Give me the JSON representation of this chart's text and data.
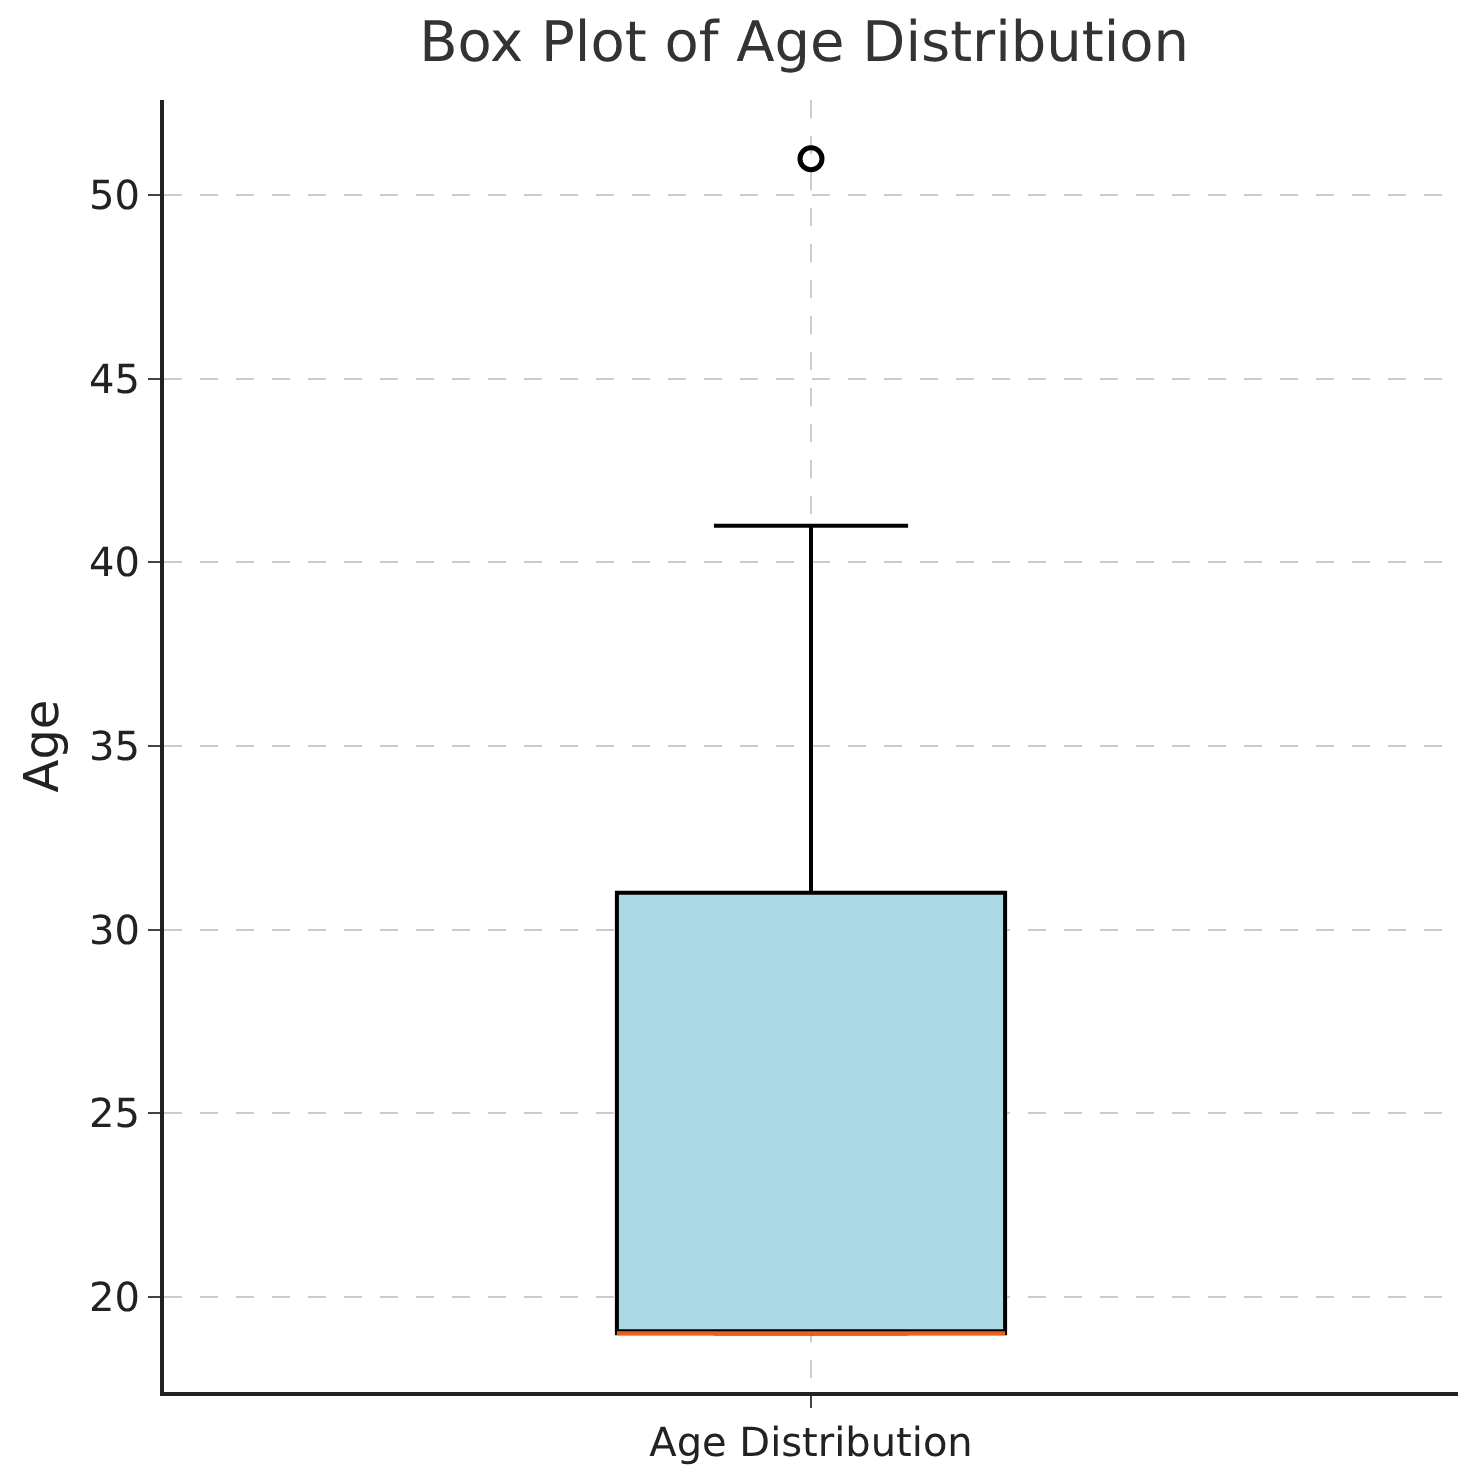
{
  "chart_data": {
    "type": "box",
    "title": "Box Plot of Age Distribution",
    "ylabel": "Age",
    "categories": [
      "Age Distribution"
    ],
    "boxes": [
      {
        "low": 19,
        "q1": 19,
        "median": 19,
        "q3": 31,
        "high": 41,
        "outliers": [
          51
        ]
      }
    ],
    "color": "#add8e6",
    "ylim": [
      17.4,
      52.6
    ],
    "yticks": [
      20,
      25,
      30,
      35,
      40,
      45,
      50
    ],
    "grid": true
  }
}
